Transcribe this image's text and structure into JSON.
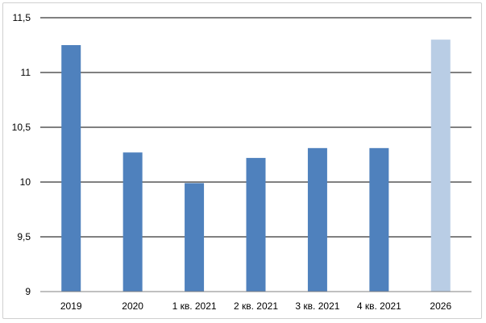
{
  "chart_data": {
    "type": "bar",
    "title": "",
    "xlabel": "",
    "ylabel": "",
    "categories": [
      "2019",
      "2020",
      "1 кв. 2021",
      "2 кв. 2021",
      "3 кв. 2021",
      "4 кв. 2021",
      "2026"
    ],
    "values": [
      11.25,
      10.27,
      9.99,
      10.22,
      10.31,
      10.31,
      11.3
    ],
    "ylim": [
      9,
      11.5
    ],
    "yticks": [
      9,
      9.5,
      10,
      10.5,
      11,
      11.5
    ],
    "ytick_labels": [
      "9",
      "9,5",
      "10",
      "10,5",
      "11",
      "11,5"
    ],
    "grid": true,
    "legend": "none",
    "colors": {
      "bar": "#4f81bd",
      "bar_highlight": "#b9cde5",
      "grid": "#000000",
      "axis": "#808080"
    },
    "highlight_index": 6
  }
}
